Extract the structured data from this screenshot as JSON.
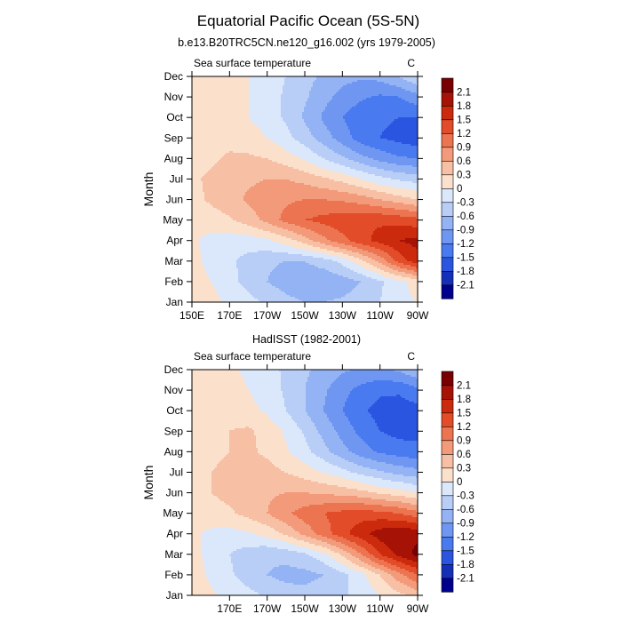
{
  "figure": {
    "title": "Equatorial Pacific Ocean (5S-5N)"
  },
  "colorbar": {
    "levels": [
      -2.1,
      -1.8,
      -1.5,
      -1.2,
      -0.9,
      -0.6,
      -0.3,
      0,
      0.3,
      0.6,
      0.9,
      1.2,
      1.5,
      1.8,
      2.1
    ],
    "labels": [
      "-2.1",
      "-1.8",
      "-1.5",
      "-1.2",
      "-0.9",
      "-0.6",
      "-0.3",
      "0",
      "0.3",
      "0.6",
      "0.9",
      "1.2",
      "1.5",
      "1.8",
      "2.1"
    ],
    "colors": [
      "#00008f",
      "#1530b8",
      "#2a55e0",
      "#4a7af0",
      "#6f97f2",
      "#94b3f4",
      "#b9cef7",
      "#dbe7fb",
      "#fbe0cc",
      "#f7bfa3",
      "#f29a79",
      "#ec7450",
      "#e24c28",
      "#cc2a0c",
      "#a61205",
      "#780000"
    ]
  },
  "chart_data": [
    {
      "type": "heatmap",
      "title": "b.e13.B20TRC5CN.ne120_g16.002 (yrs 1979-2005)",
      "left_string": "Sea surface temperature",
      "right_string": "C",
      "ylabel": "Month",
      "xlabel": "",
      "x_ticks": [
        "150E",
        "170E",
        "170W",
        "150W",
        "130W",
        "110W",
        "90W"
      ],
      "x_tick_values": [
        150,
        170,
        190,
        210,
        230,
        250,
        270
      ],
      "xlim": [
        150,
        270
      ],
      "y_ticks": [
        "Jan",
        "Feb",
        "Mar",
        "Apr",
        "May",
        "Jun",
        "Jul",
        "Aug",
        "Sep",
        "Oct",
        "Nov",
        "Dec"
      ],
      "ylim": [
        1,
        12
      ],
      "units": "C",
      "x": [
        150,
        160,
        170,
        180,
        190,
        200,
        210,
        220,
        230,
        240,
        250,
        260,
        270
      ],
      "z": [
        [
          0.3,
          0.1,
          -0.05,
          -0.2,
          -0.35,
          -0.5,
          -0.6,
          -0.6,
          -0.55,
          -0.45,
          -0.3,
          -0.1,
          0.0
        ],
        [
          0.2,
          0.0,
          -0.2,
          -0.4,
          -0.6,
          -0.75,
          -0.85,
          -0.85,
          -0.75,
          -0.6,
          -0.35,
          -0.1,
          0.15
        ],
        [
          0.1,
          -0.1,
          -0.25,
          -0.4,
          -0.55,
          -0.6,
          -0.6,
          -0.45,
          -0.2,
          0.2,
          0.7,
          1.3,
          1.7
        ],
        [
          0.05,
          -0.1,
          -0.15,
          -0.15,
          -0.05,
          0.15,
          0.45,
          0.8,
          1.1,
          1.4,
          1.6,
          1.8,
          1.9
        ],
        [
          0.1,
          0.15,
          0.25,
          0.45,
          0.7,
          1.0,
          1.2,
          1.3,
          1.4,
          1.45,
          1.45,
          1.4,
          1.3
        ],
        [
          0.2,
          0.35,
          0.5,
          0.65,
          0.75,
          0.85,
          0.9,
          0.9,
          0.85,
          0.75,
          0.6,
          0.45,
          0.3
        ],
        [
          0.25,
          0.35,
          0.45,
          0.55,
          0.6,
          0.6,
          0.5,
          0.35,
          0.2,
          0.0,
          -0.2,
          -0.35,
          -0.45
        ],
        [
          0.15,
          0.25,
          0.35,
          0.35,
          0.3,
          0.15,
          -0.05,
          -0.3,
          -0.55,
          -0.8,
          -1.0,
          -1.15,
          -1.2
        ],
        [
          0.0,
          0.15,
          0.2,
          0.15,
          0.0,
          -0.2,
          -0.45,
          -0.75,
          -1.05,
          -1.35,
          -1.5,
          -1.6,
          -1.7
        ],
        [
          0.0,
          0.1,
          0.1,
          0.0,
          -0.15,
          -0.35,
          -0.65,
          -0.95,
          -1.2,
          -1.4,
          -1.45,
          -1.5,
          -1.5
        ],
        [
          0.1,
          0.15,
          0.1,
          0.0,
          -0.15,
          -0.35,
          -0.55,
          -0.8,
          -1.0,
          -1.15,
          -1.25,
          -1.2,
          -1.0
        ],
        [
          0.25,
          0.2,
          0.1,
          0.0,
          -0.15,
          -0.3,
          -0.5,
          -0.65,
          -0.8,
          -0.85,
          -0.8,
          -0.6,
          -0.3
        ]
      ]
    },
    {
      "type": "heatmap",
      "title": "HadISST (1982-2001)",
      "left_string": "Sea surface temperature",
      "right_string": "C",
      "ylabel": "Month",
      "xlabel": "",
      "x_ticks": [
        "170E",
        "170W",
        "150W",
        "130W",
        "110W",
        "90W"
      ],
      "x_tick_values": [
        170,
        190,
        210,
        230,
        250,
        270
      ],
      "xlim": [
        150,
        270
      ],
      "y_ticks": [
        "Jan",
        "Feb",
        "Mar",
        "Apr",
        "May",
        "Jun",
        "Jul",
        "Aug",
        "Sep",
        "Oct",
        "Nov",
        "Dec"
      ],
      "ylim": [
        1,
        12
      ],
      "units": "C",
      "x": [
        150,
        160,
        170,
        180,
        190,
        200,
        210,
        220,
        230,
        240,
        250,
        260,
        270
      ],
      "z": [
        [
          0.2,
          0.05,
          -0.1,
          -0.2,
          -0.35,
          -0.45,
          -0.5,
          -0.45,
          -0.35,
          -0.2,
          0.0,
          0.2,
          0.4
        ],
        [
          0.15,
          -0.05,
          -0.25,
          -0.45,
          -0.6,
          -0.7,
          -0.7,
          -0.6,
          -0.4,
          -0.1,
          0.3,
          0.8,
          1.2
        ],
        [
          0.1,
          -0.1,
          -0.3,
          -0.45,
          -0.55,
          -0.5,
          -0.35,
          -0.1,
          0.35,
          0.9,
          1.5,
          1.9,
          2.2
        ],
        [
          0.05,
          -0.05,
          -0.1,
          -0.05,
          0.1,
          0.35,
          0.7,
          1.05,
          1.4,
          1.7,
          1.95,
          2.1,
          2.0
        ],
        [
          0.1,
          0.15,
          0.25,
          0.4,
          0.6,
          0.85,
          1.05,
          1.2,
          1.3,
          1.35,
          1.3,
          1.2,
          1.0
        ],
        [
          0.2,
          0.3,
          0.4,
          0.5,
          0.55,
          0.6,
          0.6,
          0.55,
          0.5,
          0.4,
          0.25,
          0.15,
          0.0
        ],
        [
          0.25,
          0.3,
          0.35,
          0.4,
          0.4,
          0.3,
          0.15,
          0.0,
          -0.2,
          -0.4,
          -0.55,
          -0.7,
          -0.8
        ],
        [
          0.15,
          0.25,
          0.3,
          0.35,
          0.25,
          0.05,
          -0.2,
          -0.5,
          -0.8,
          -1.05,
          -1.25,
          -1.35,
          -1.4
        ],
        [
          0.05,
          0.2,
          0.3,
          0.35,
          0.2,
          -0.05,
          -0.35,
          -0.7,
          -1.0,
          -1.3,
          -1.5,
          -1.6,
          -1.6
        ],
        [
          0.0,
          0.15,
          0.2,
          0.1,
          -0.05,
          -0.3,
          -0.6,
          -0.9,
          -1.2,
          -1.45,
          -1.6,
          -1.65,
          -1.6
        ],
        [
          0.05,
          0.1,
          0.1,
          0.0,
          -0.15,
          -0.35,
          -0.6,
          -0.85,
          -1.1,
          -1.3,
          -1.45,
          -1.45,
          -1.3
        ],
        [
          0.2,
          0.15,
          0.05,
          -0.05,
          -0.2,
          -0.35,
          -0.55,
          -0.7,
          -0.85,
          -0.95,
          -0.95,
          -0.85,
          -0.6
        ]
      ]
    }
  ]
}
